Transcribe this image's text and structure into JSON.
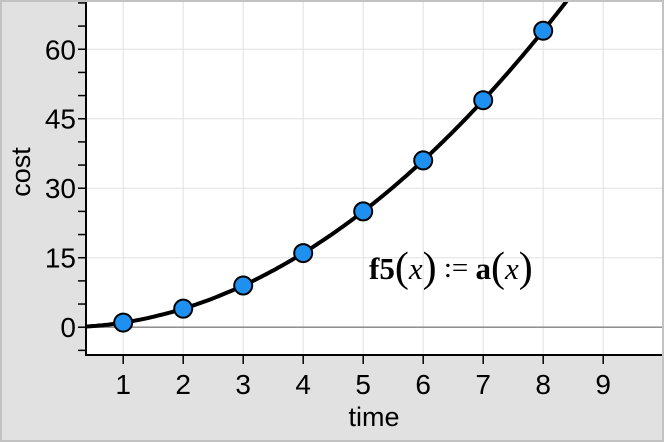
{
  "window": {
    "background": "#e1e1e1",
    "border_color": "#c2c2c2",
    "plot_background": "#ffffff"
  },
  "colors": {
    "grid": "#e6e6e6",
    "axis": "#000000",
    "zero_line": "#808080",
    "curve": "#000000",
    "point_fill": "#1e90f0",
    "point_stroke": "#000000",
    "text": "#000000"
  },
  "chart_data": {
    "type": "scatter",
    "title": "",
    "xlabel": "time",
    "ylabel": "cost",
    "xlim": [
      0.38,
      9.98
    ],
    "ylim": [
      -6,
      70.2
    ],
    "x_ticks": [
      1,
      2,
      3,
      4,
      5,
      6,
      7,
      8,
      9
    ],
    "x_tick_labels": [
      "1",
      "2",
      "3",
      "4",
      "5",
      "6",
      "7",
      "8",
      "9"
    ],
    "y_ticks_labeled": [
      0,
      15,
      30,
      45,
      60
    ],
    "y_tick_labels": [
      "0",
      "15",
      "30",
      "45",
      "60"
    ],
    "y_minor_tick_step": 5,
    "grid_x_step": 1,
    "grid_y_step": 15,
    "legend": "none",
    "points": {
      "x": [
        1,
        2,
        3,
        4,
        5,
        6,
        7,
        8
      ],
      "y": [
        1,
        4,
        9,
        16,
        25,
        36,
        49,
        64
      ]
    },
    "curve_model": "x^2",
    "curve_label": "f5(x) := a(x)"
  },
  "annotation": {
    "parts": [
      {
        "text": "f5",
        "style": "bold"
      },
      {
        "text": "(",
        "style": "paren"
      },
      {
        "text": "x",
        "style": "italic"
      },
      {
        "text": ")",
        "style": "paren"
      },
      {
        "text": " := ",
        "style": "op"
      },
      {
        "text": "a",
        "style": "bold"
      },
      {
        "text": "(",
        "style": "paren"
      },
      {
        "text": "x",
        "style": "italic"
      },
      {
        "text": ")",
        "style": "paren"
      }
    ]
  }
}
